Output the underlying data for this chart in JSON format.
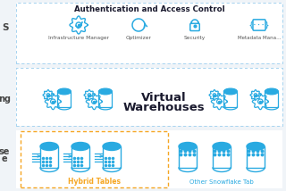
{
  "bg_color": "#f8f9fa",
  "section_border_color": "#a8d4f0",
  "orange_border_color": "#f5a623",
  "blue": "#29aae1",
  "dark": "#1a1a2e",
  "orange": "#f5a623",
  "auth_title": "Authentication and Access Control",
  "vw_title_line1": "Virtual",
  "vw_title_line2": "Warehouses",
  "hybrid_label": "Hybrid Tables",
  "other_label": "Other Snowflake Tab",
  "left_s": "S",
  "left_ng": "ng",
  "left_se": "se",
  "left_e": "e"
}
